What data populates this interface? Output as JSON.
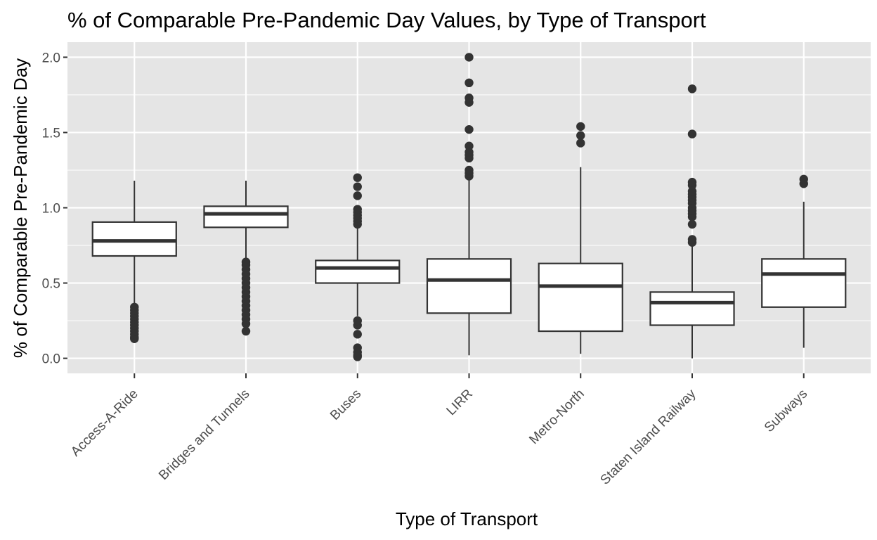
{
  "chart_data": {
    "type": "box",
    "title": "% of Comparable Pre-Pandemic Day Values, by Type of Transport",
    "xlabel": "Type of Transport",
    "ylabel": "% of Comparable Pre-Pandemic Day",
    "ylim": [
      -0.1,
      2.1
    ],
    "yticks": [
      "0.0",
      "0.5",
      "1.0",
      "1.5",
      "2.0"
    ],
    "grid": true,
    "colors": {
      "panel": "#e5e5e5",
      "gridline": "#ffffff",
      "box_fill": "#ffffff",
      "box_stroke": "#333333",
      "outlier": "#333333"
    },
    "categories": [
      "Access-A-Ride",
      "Bridges and Tunnels",
      "Buses",
      "LIRR",
      "Metro-North",
      "Staten Island Railway",
      "Subways"
    ],
    "boxes": [
      {
        "category": "Access-A-Ride",
        "whisker_low": 0.35,
        "q1": 0.68,
        "median": 0.78,
        "q3": 0.905,
        "whisker_high": 1.18,
        "outliers": [
          0.13,
          0.14,
          0.16,
          0.18,
          0.2,
          0.22,
          0.24,
          0.26,
          0.28,
          0.3,
          0.32,
          0.34
        ]
      },
      {
        "category": "Bridges and Tunnels",
        "whisker_low": 0.65,
        "q1": 0.87,
        "median": 0.96,
        "q3": 1.01,
        "whisker_high": 1.18,
        "outliers": [
          0.18,
          0.23,
          0.26,
          0.29,
          0.32,
          0.35,
          0.38,
          0.41,
          0.44,
          0.47,
          0.5,
          0.53,
          0.56,
          0.59,
          0.62,
          0.64
        ]
      },
      {
        "category": "Buses",
        "whisker_low": 0.28,
        "q1": 0.5,
        "median": 0.6,
        "q3": 0.65,
        "whisker_high": 0.87,
        "outliers": [
          0.01,
          0.02,
          0.04,
          0.07,
          0.16,
          0.22,
          0.25,
          0.89,
          0.91,
          0.93,
          0.95,
          0.97,
          0.99,
          1.08,
          1.14,
          1.2
        ]
      },
      {
        "category": "LIRR",
        "whisker_low": 0.02,
        "q1": 0.3,
        "median": 0.52,
        "q3": 0.66,
        "whisker_high": 1.19,
        "outliers": [
          1.21,
          1.23,
          1.25,
          1.33,
          1.35,
          1.37,
          1.41,
          1.52,
          1.7,
          1.73,
          1.83,
          2.0
        ]
      },
      {
        "category": "Metro-North",
        "whisker_low": 0.03,
        "q1": 0.18,
        "median": 0.48,
        "q3": 0.63,
        "whisker_high": 1.27,
        "outliers": [
          1.43,
          1.48,
          1.54
        ]
      },
      {
        "category": "Staten Island Railway",
        "whisker_low": 0.0,
        "q1": 0.22,
        "median": 0.37,
        "q3": 0.44,
        "whisker_high": 0.75,
        "outliers": [
          0.77,
          0.79,
          0.89,
          0.94,
          0.96,
          0.98,
          1.0,
          1.03,
          1.05,
          1.07,
          1.09,
          1.11,
          1.15,
          1.17,
          1.49,
          1.79
        ]
      },
      {
        "category": "Subways",
        "whisker_low": 0.07,
        "q1": 0.34,
        "median": 0.56,
        "q3": 0.66,
        "whisker_high": 1.04,
        "outliers": [
          1.16,
          1.19
        ]
      }
    ]
  }
}
